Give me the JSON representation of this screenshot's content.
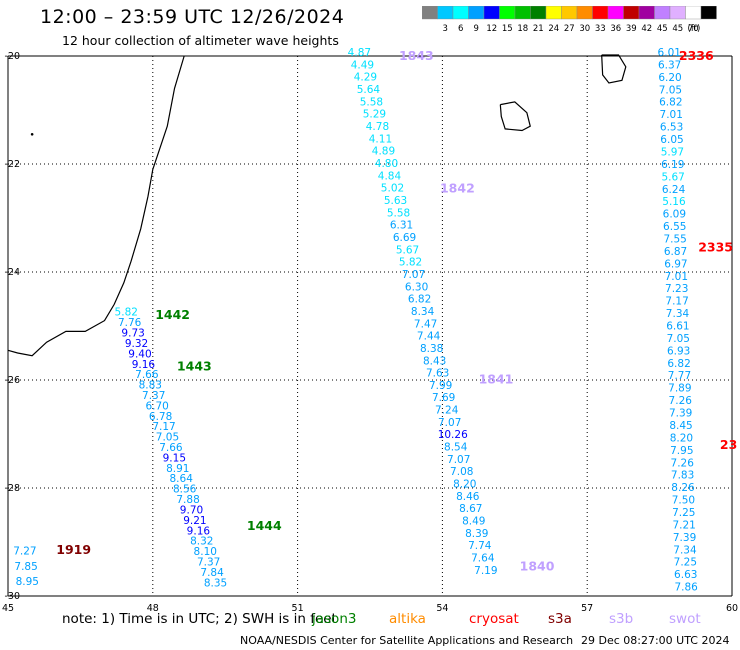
{
  "title": "12:00 – 23:59 UTC 12/26/2024",
  "subtitle": "12 hour collection of altimeter wave heights",
  "color_scale": {
    "unit_label": "(ft)",
    "bins": [
      {
        "label": "",
        "color": "#808080"
      },
      {
        "label": "3",
        "color": "#00c8ff"
      },
      {
        "label": "6",
        "color": "#00ffff"
      },
      {
        "label": "9",
        "color": "#00a0ff"
      },
      {
        "label": "12",
        "color": "#0000ff"
      },
      {
        "label": "15",
        "color": "#00ff00"
      },
      {
        "label": "18",
        "color": "#00c000"
      },
      {
        "label": "21",
        "color": "#008000"
      },
      {
        "label": "24",
        "color": "#ffff00"
      },
      {
        "label": "27",
        "color": "#ffc800"
      },
      {
        "label": "30",
        "color": "#ff8c00"
      },
      {
        "label": "33",
        "color": "#ff0000"
      },
      {
        "label": "36",
        "color": "#ff00ff"
      },
      {
        "label": "39",
        "color": "#c00000"
      },
      {
        "label": "42",
        "color": "#a000a0"
      },
      {
        "label": "45",
        "color": "#c080ff"
      },
      {
        "label": "45",
        "color": "#e0b0ff"
      },
      {
        "label": "70",
        "color": "#ffffff"
      },
      {
        "label": "",
        "color": "#000000"
      }
    ]
  },
  "map": {
    "lon_min": 45,
    "lon_max": 60,
    "lat_min": -30,
    "lat_max": -20,
    "lon_ticks": [
      "45",
      "48",
      "51",
      "54",
      "57",
      "60"
    ],
    "lat_ticks": [
      "-20",
      "-22",
      "-24",
      "-26",
      "-28",
      "-30"
    ],
    "tick_colors": {
      "lat": "#000000"
    },
    "value_colors": {
      "low": "#00c8ff",
      "mid": "#00a0ff",
      "cyan": "#00e0ff",
      "high": "#0000ff"
    },
    "tracks": [
      {
        "name": "jason3-1442-1444",
        "labels": [
          {
            "text": "1442",
            "color": "#008000",
            "lon": 48.05,
            "lat": -24.8
          },
          {
            "text": "1443",
            "color": "#008000",
            "lon": 48.5,
            "lat": -25.75
          },
          {
            "text": "1444",
            "color": "#008000",
            "lon": 49.95,
            "lat": -28.7
          }
        ],
        "values": [
          "5.82",
          "7.76",
          "9.73",
          "9.32",
          "9.40",
          "9.16",
          "7.66",
          "8.83",
          "7.37",
          "6.70",
          "6.78",
          "7.17",
          "7.05",
          "7.66",
          "9.15",
          "8.91",
          "8.64",
          "8.56",
          "7.88",
          "9.70",
          "9.21",
          "9.16",
          "8.32",
          "8.10",
          "7.37",
          "7.84",
          "8.35"
        ],
        "start": {
          "lon": 47.45,
          "lat": -24.81
        },
        "end": {
          "lon": 49.3,
          "lat": -29.82
        }
      },
      {
        "name": "swot-1840-1843",
        "labels": [
          {
            "text": "1843",
            "color": "#c0a0ff",
            "lon": 53.1,
            "lat": -20.0
          },
          {
            "text": "1842",
            "color": "#c0a0ff",
            "lon": 53.95,
            "lat": -22.45
          },
          {
            "text": "1841",
            "color": "#c0a0ff",
            "lon": 54.75,
            "lat": -25.99
          },
          {
            "text": "1840",
            "color": "#c0a0ff",
            "lon": 55.6,
            "lat": -29.45
          }
        ],
        "values": [
          "4.87",
          "4.49",
          "4.29",
          "5.64",
          "5.58",
          "5.29",
          "4.78",
          "4.11",
          "4.89",
          "4.80",
          "4.84",
          "5.02",
          "5.63",
          "5.58",
          "6.31",
          "6.69",
          "5.67",
          "5.82",
          "7.07",
          "6.30",
          "6.82",
          "8.34",
          "7.47",
          "7.44",
          "8.38",
          "8.43",
          "7.63",
          "7.99",
          "7.69",
          "7.24",
          "7.07",
          "10.26",
          "8.54",
          "7.07",
          "7.08",
          "8.20",
          "8.46",
          "8.67",
          "8.49",
          "8.39",
          "7.74",
          "7.64",
          "7.19"
        ],
        "start": {
          "lon": 52.28,
          "lat": -20.0
        },
        "end": {
          "lon": 54.9,
          "lat": -29.59
        }
      },
      {
        "name": "cryosat-2335-2336",
        "labels": [
          {
            "text": "2336",
            "color": "#ff0000",
            "lon": 58.9,
            "lat": -20.0
          },
          {
            "text": "2335",
            "color": "#ff0000",
            "lon": 59.3,
            "lat": -23.55
          },
          {
            "text": "23",
            "color": "#ff0000",
            "lon": 59.75,
            "lat": -27.2
          }
        ],
        "values": [
          "6.01",
          "6.37",
          "6.20",
          "7.05",
          "6.82",
          "7.01",
          "6.53",
          "6.05",
          "5.97",
          "6.19",
          "5.67",
          "6.24",
          "5.16",
          "6.09",
          "6.55",
          "7.55",
          "6.87",
          "6.97",
          "7.01",
          "7.23",
          "7.17",
          "7.34",
          "6.61",
          "7.05",
          "6.93",
          "6.82",
          "7.77",
          "7.89",
          "7.26",
          "7.39",
          "8.45",
          "8.20",
          "7.95",
          "7.26",
          "7.83",
          "8.26",
          "7.50",
          "7.25",
          "7.21",
          "7.39",
          "7.34",
          "7.25",
          "6.63",
          "7.86"
        ],
        "start": {
          "lon": 58.7,
          "lat": -20.0
        },
        "end": {
          "lon": 59.05,
          "lat": -29.9
        }
      },
      {
        "name": "s3a-1919",
        "labels": [
          {
            "text": "1919",
            "color": "#800000",
            "lon": 46.0,
            "lat": -29.15
          }
        ],
        "values": [
          "7.27",
          "7.85",
          "8.95"
        ],
        "start": {
          "lon": 45.35,
          "lat": -29.23
        },
        "end": {
          "lon": 45.4,
          "lat": -29.8
        }
      }
    ]
  },
  "note": "note: 1) Time is in UTC; 2) SWH is in feet",
  "satellites": [
    {
      "label": "jason3",
      "color": "#008000"
    },
    {
      "label": "altika",
      "color": "#ff8c00"
    },
    {
      "label": "cryosat",
      "color": "#ff0000"
    },
    {
      "label": "s3a",
      "color": "#800000"
    },
    {
      "label": "s3b",
      "color": "#c0a0ff"
    },
    {
      "label": "swot",
      "color": "#c0a0ff"
    }
  ],
  "credit": "NOAA/NESDIS Center for Satellite Applications and Research",
  "timestamp": "29 Dec 08:27:00 UTC 2024"
}
